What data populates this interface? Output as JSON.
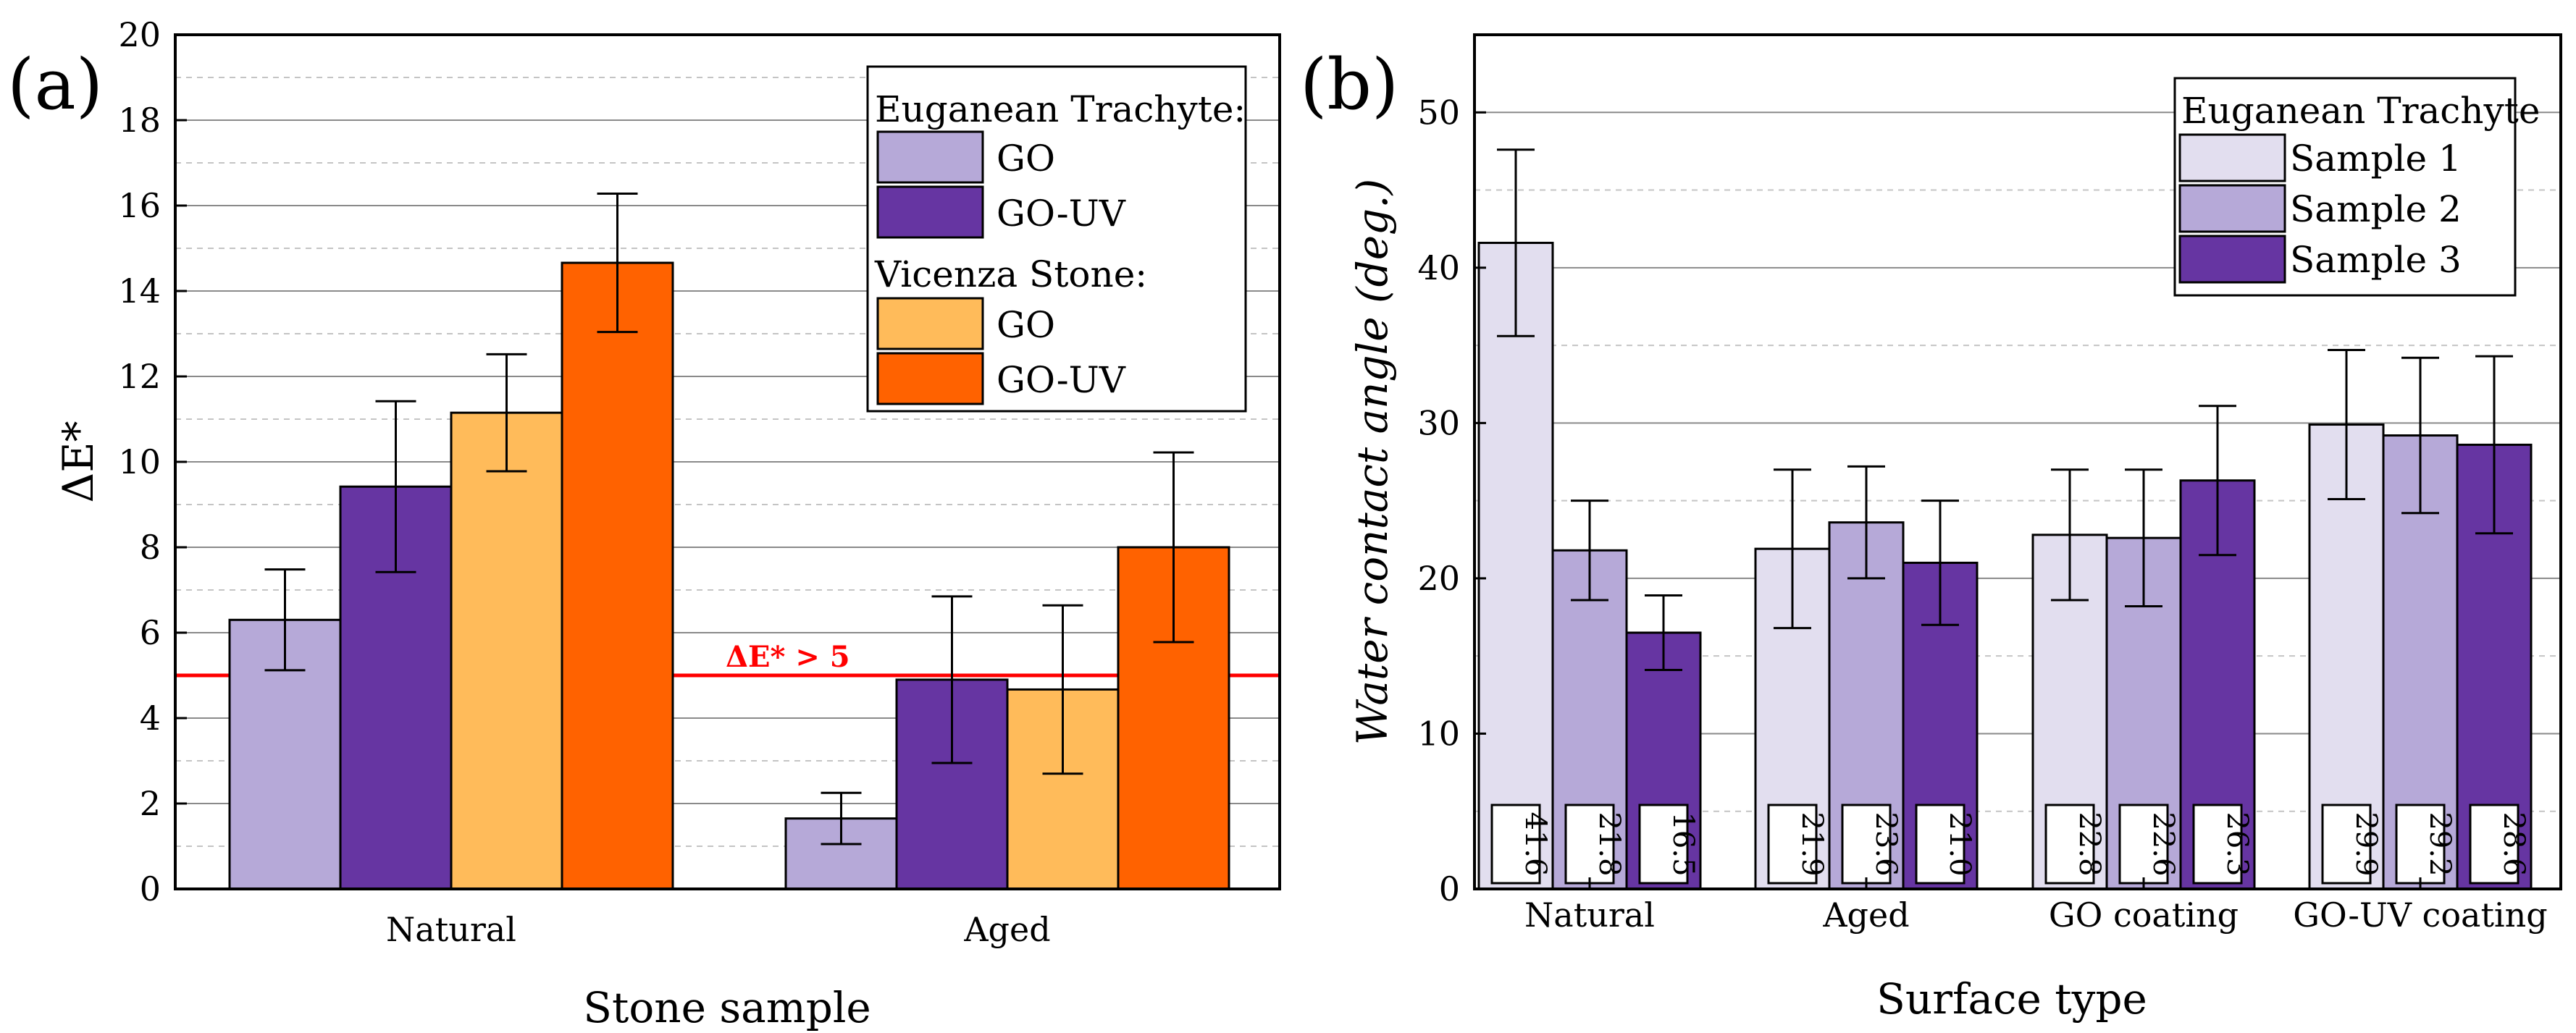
{
  "colors": {
    "et_go": "#b6a9d8",
    "et_gouv": "#6635a2",
    "vs_go": "#ffbb5a",
    "vs_gouv": "#ff6200",
    "sample1": "#e2deef",
    "sample2": "#b6a9d8",
    "sample3": "#6635a2",
    "threshold": "#ff0000"
  },
  "chart_data": [
    {
      "panel_label": "(a)",
      "type": "bar",
      "title": "",
      "xlabel": "Stone sample",
      "ylabel": "ΔE*",
      "ylim": [
        0,
        20
      ],
      "yticks": [
        "0",
        "2",
        "4",
        "6",
        "8",
        "10",
        "12",
        "14",
        "16",
        "18",
        "20"
      ],
      "grid": true,
      "categories": [
        "Natural",
        "Aged"
      ],
      "series": [
        {
          "name": "Euganean Trachyte GO",
          "values": [
            6.3,
            1.65
          ],
          "errors": [
            1.18,
            0.6
          ]
        },
        {
          "name": "Euganean Trachyte GO-UV",
          "values": [
            9.42,
            4.9
          ],
          "errors": [
            2.0,
            1.95
          ]
        },
        {
          "name": "Vicenza Stone GO",
          "values": [
            11.15,
            4.67
          ],
          "errors": [
            1.37,
            1.97
          ]
        },
        {
          "name": "Vicenza Stone GO-UV",
          "values": [
            14.66,
            8.0
          ],
          "errors": [
            1.62,
            2.22
          ]
        }
      ],
      "threshold": {
        "value": 5,
        "label": "ΔE* > 5"
      },
      "legend": {
        "position": "top-right",
        "groups": [
          {
            "title": "Euganean Trachyte:",
            "items": [
              "GO",
              "GO-UV"
            ]
          },
          {
            "title": "Vicenza Stone:",
            "items": [
              "GO",
              "GO-UV"
            ]
          }
        ]
      }
    },
    {
      "panel_label": "(b)",
      "type": "bar",
      "title": "",
      "xlabel": "Surface type",
      "ylabel": "Water contact angle (deg.)",
      "ylim": [
        0,
        55
      ],
      "yticks": [
        "0",
        "10",
        "20",
        "30",
        "40",
        "50"
      ],
      "grid": true,
      "categories": [
        "Natural",
        "Aged",
        "GO coating",
        "GO-UV coating"
      ],
      "series": [
        {
          "name": "Sample 1",
          "values": [
            41.6,
            21.9,
            22.8,
            29.9
          ],
          "errors": [
            6.0,
            5.1,
            4.2,
            4.8
          ],
          "labels": [
            "41.6",
            "21.9",
            "22.8",
            "29.9"
          ]
        },
        {
          "name": "Sample 2",
          "values": [
            21.8,
            23.6,
            22.6,
            29.2
          ],
          "errors": [
            3.2,
            3.6,
            4.4,
            5.0
          ],
          "labels": [
            "21.8",
            "23.6",
            "22.6",
            "29.2"
          ]
        },
        {
          "name": "Sample 3",
          "values": [
            16.5,
            21.0,
            26.3,
            28.6
          ],
          "errors": [
            2.4,
            4.0,
            4.8,
            5.7
          ],
          "labels": [
            "16.5",
            "21.0",
            "26.3",
            "28.6"
          ]
        }
      ],
      "legend": {
        "position": "top-right",
        "title": "Euganean Trachyte",
        "items": [
          "Sample 1",
          "Sample 2",
          "Sample 3"
        ]
      }
    }
  ]
}
